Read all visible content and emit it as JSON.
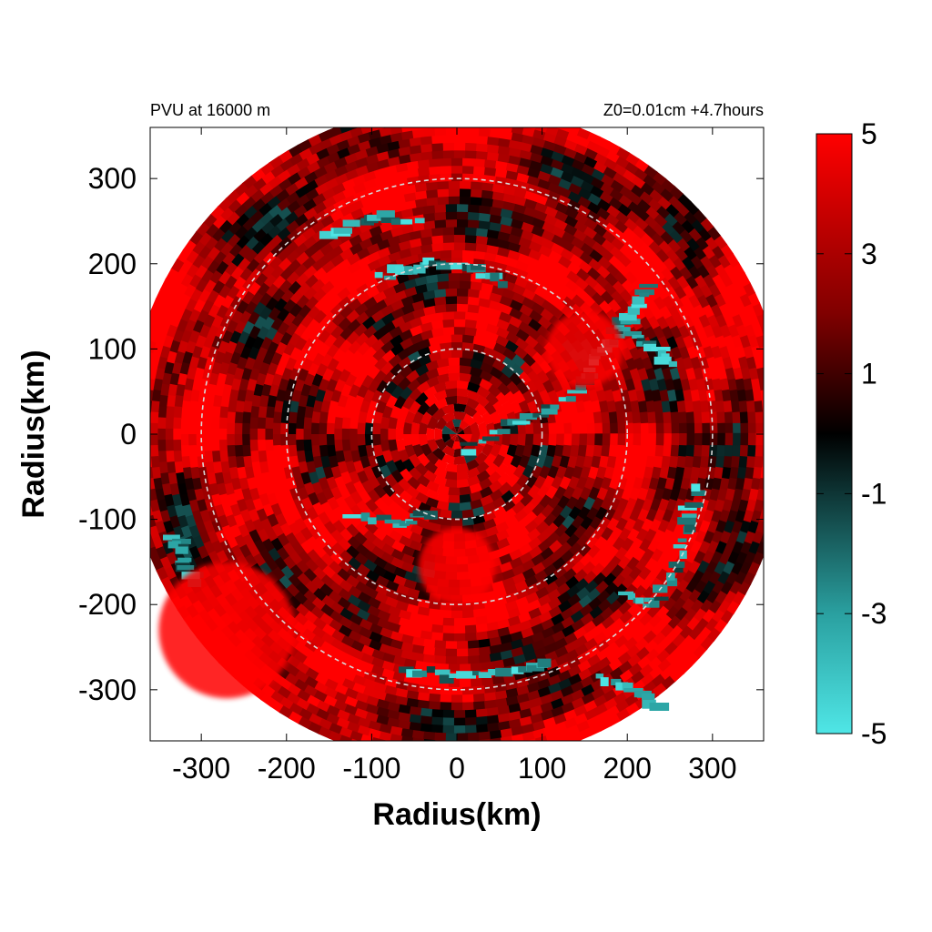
{
  "chart_data": {
    "type": "heatmap",
    "title_left": "PVU at 16000 m",
    "title_right": "Z0=0.01cm  +4.7hours",
    "xlabel": "Radius(km)",
    "ylabel": "Radius(km)",
    "xlim": [
      -360,
      360
    ],
    "ylim": [
      -360,
      360
    ],
    "xticks": [
      -300,
      -200,
      -100,
      0,
      100,
      200,
      300
    ],
    "yticks": [
      300,
      200,
      100,
      0,
      -100,
      -200,
      -300
    ],
    "xtick_labels": [
      "-300",
      "-200",
      "-100",
      "0",
      "100",
      "200",
      "300"
    ],
    "ytick_labels": [
      "300",
      "200",
      "100",
      "0",
      "-100",
      "-200",
      "-300"
    ],
    "domain_radius_km": 385,
    "reference_circles_km": [
      100,
      200,
      300
    ],
    "colorbar": {
      "min": -5,
      "max": 5,
      "ticks": [
        5,
        3,
        1,
        -1,
        -3,
        -5
      ],
      "tick_labels": [
        "5",
        "3",
        "1",
        "-1",
        "-3",
        "-5"
      ],
      "stops": [
        {
          "value": -5,
          "color": "#4fe6e6"
        },
        {
          "value": -3,
          "color": "#2aa0a0"
        },
        {
          "value": 0,
          "color": "#000000"
        },
        {
          "value": 2,
          "color": "#800000"
        },
        {
          "value": 5,
          "color": "#ff0000"
        }
      ]
    },
    "features": [
      {
        "kind": "negative-band",
        "description": "",
        "polyline": [
          [
            10,
            -20
          ],
          [
            60,
            10
          ],
          [
            110,
            30
          ],
          [
            150,
            60
          ],
          [
            170,
            95
          ],
          [
            190,
            120
          ],
          [
            210,
            150
          ],
          [
            230,
            175
          ]
        ]
      },
      {
        "kind": "negative-band",
        "polyline": [
          [
            200,
            120
          ],
          [
            230,
            100
          ],
          [
            255,
            80
          ]
        ]
      },
      {
        "kind": "negative-band",
        "polyline": [
          [
            200,
            -190
          ],
          [
            235,
            -200
          ],
          [
            260,
            -150
          ],
          [
            270,
            -100
          ],
          [
            285,
            -60
          ]
        ]
      },
      {
        "kind": "negative-band",
        "polyline": [
          [
            -150,
            235
          ],
          [
            -90,
            255
          ],
          [
            -40,
            250
          ]
        ]
      },
      {
        "kind": "negative-band",
        "polyline": [
          [
            -90,
            185
          ],
          [
            -40,
            200
          ],
          [
            20,
            195
          ],
          [
            60,
            175
          ]
        ]
      },
      {
        "kind": "negative-band",
        "polyline": [
          [
            -120,
            -95
          ],
          [
            -60,
            -105
          ],
          [
            -30,
            -90
          ]
        ]
      },
      {
        "kind": "negative-band",
        "polyline": [
          [
            -60,
            -275
          ],
          [
            0,
            -285
          ],
          [
            70,
            -280
          ],
          [
            110,
            -265
          ]
        ]
      },
      {
        "kind": "negative-band",
        "polyline": [
          [
            -330,
            -120
          ],
          [
            -320,
            -150
          ],
          [
            -305,
            -180
          ]
        ]
      },
      {
        "kind": "negative-band",
        "polyline": [
          [
            170,
            -285
          ],
          [
            210,
            -300
          ],
          [
            240,
            -320
          ]
        ]
      },
      {
        "kind": "strong-positive-patch",
        "center": [
          -270,
          -230
        ],
        "radius": 80
      },
      {
        "kind": "strong-positive-patch",
        "center": [
          150,
          100
        ],
        "radius": 45
      },
      {
        "kind": "strong-positive-patch",
        "center": [
          0,
          -155
        ],
        "radius": 45
      }
    ]
  }
}
